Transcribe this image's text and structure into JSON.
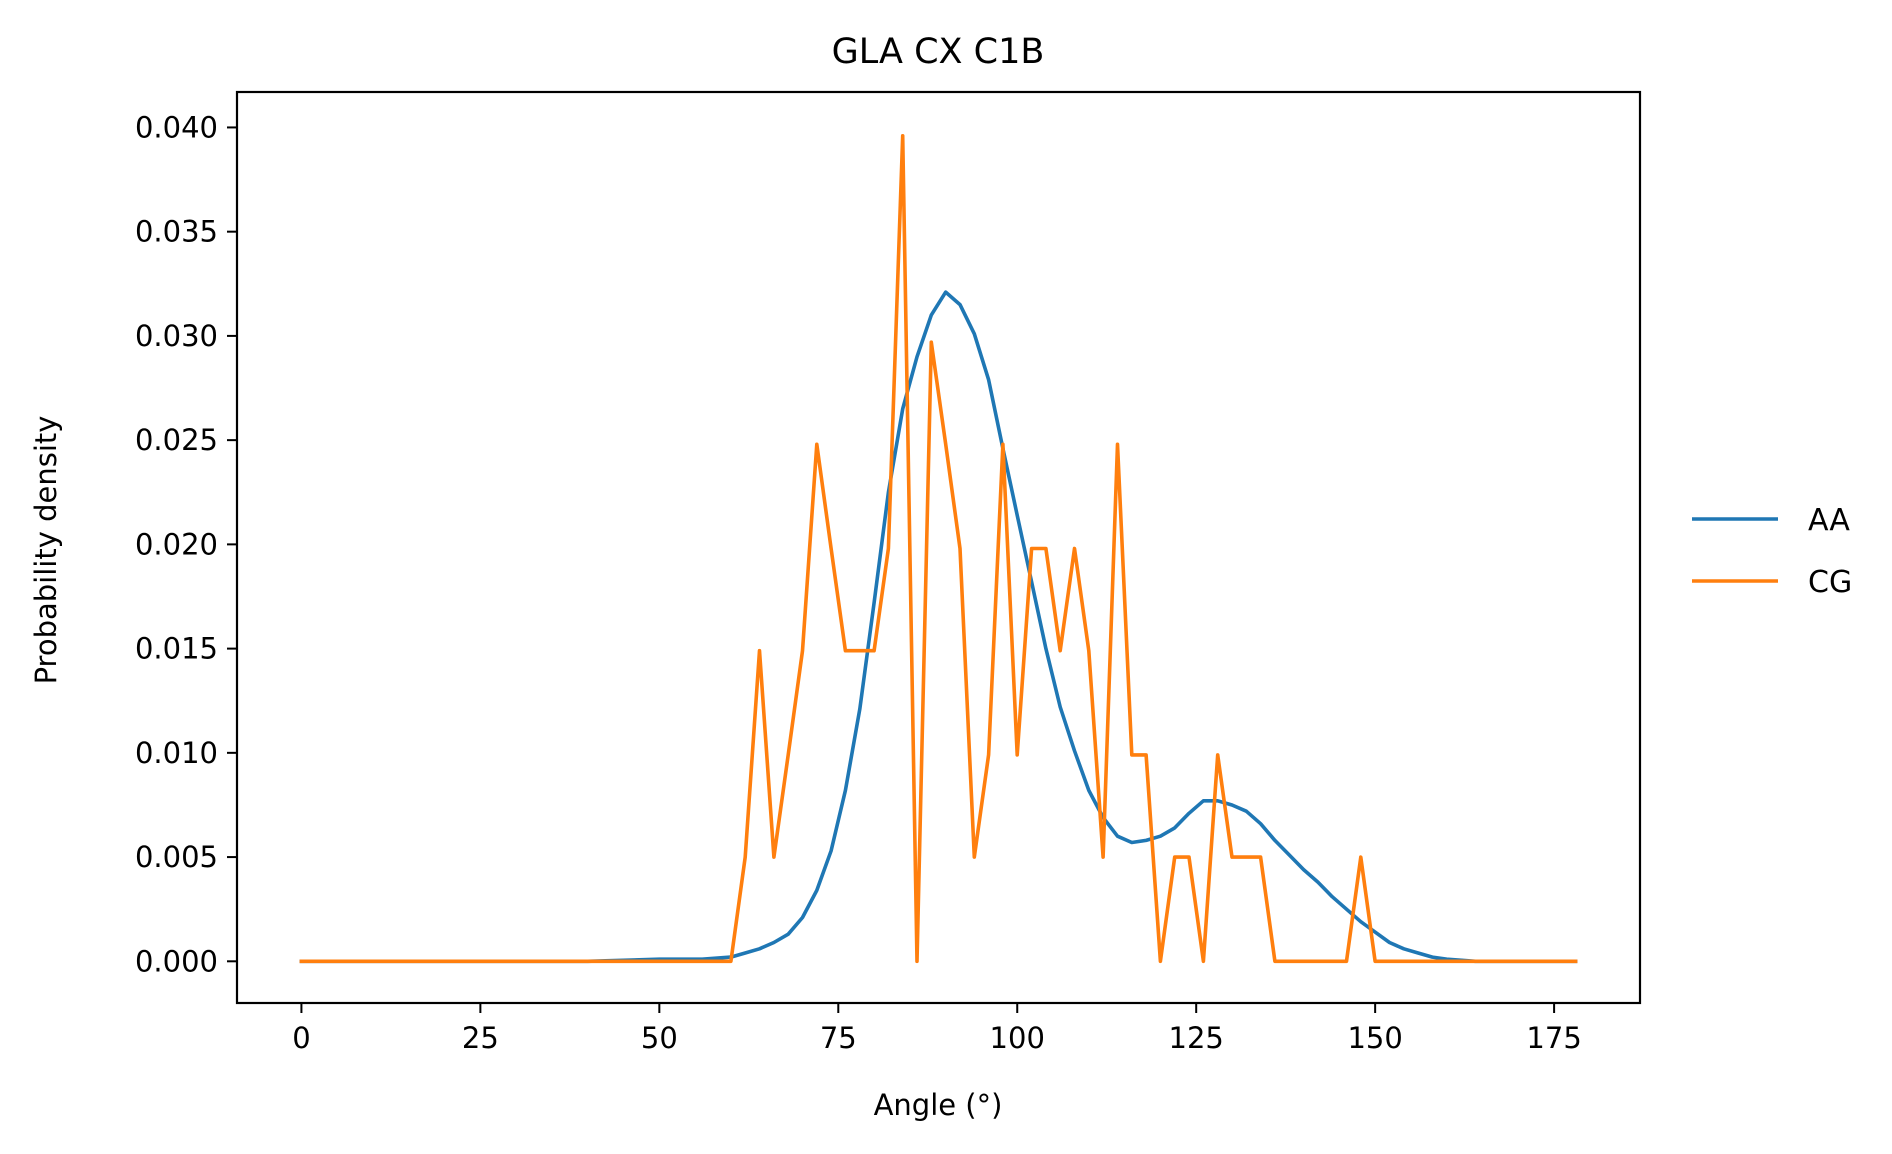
{
  "chart_data": {
    "type": "line",
    "title": "GLA CX C1B",
    "xlabel": "Angle (°)",
    "ylabel": "Probability density",
    "xlim": [
      -9,
      187
    ],
    "ylim": [
      -0.002,
      0.0417
    ],
    "xticks": [
      0,
      25,
      50,
      75,
      100,
      125,
      150,
      175
    ],
    "xtick_labels": [
      "0",
      "25",
      "50",
      "75",
      "100",
      "125",
      "150",
      "175"
    ],
    "yticks": [
      0.0,
      0.005,
      0.01,
      0.015,
      0.02,
      0.025,
      0.03,
      0.035,
      0.04
    ],
    "ytick_labels": [
      "0.000",
      "0.005",
      "0.010",
      "0.015",
      "0.020",
      "0.025",
      "0.030",
      "0.035",
      "0.040"
    ],
    "grid": false,
    "legend_position": "right, outside plot",
    "series": [
      {
        "name": "AA",
        "color": "#1f77b4",
        "x": [
          0,
          10,
          20,
          30,
          40,
          50,
          56,
          60,
          62,
          64,
          66,
          68,
          70,
          72,
          74,
          76,
          78,
          80,
          82,
          84,
          86,
          88,
          90,
          92,
          94,
          96,
          98,
          100,
          102,
          104,
          106,
          108,
          110,
          112,
          114,
          116,
          118,
          120,
          122,
          124,
          126,
          128,
          130,
          132,
          134,
          136,
          138,
          140,
          142,
          144,
          146,
          148,
          150,
          152,
          154,
          156,
          158,
          160,
          164,
          170,
          178
        ],
        "y": [
          0,
          0,
          0,
          0,
          0,
          0.0001,
          0.0001,
          0.0002,
          0.0004,
          0.0006,
          0.0009,
          0.0013,
          0.0021,
          0.0034,
          0.0053,
          0.0082,
          0.0121,
          0.0172,
          0.0225,
          0.0265,
          0.029,
          0.031,
          0.0321,
          0.0315,
          0.0301,
          0.0279,
          0.0246,
          0.0214,
          0.0182,
          0.015,
          0.0122,
          0.0101,
          0.0082,
          0.0069,
          0.006,
          0.0057,
          0.0058,
          0.006,
          0.0064,
          0.0071,
          0.0077,
          0.0077,
          0.0075,
          0.0072,
          0.0066,
          0.0058,
          0.0051,
          0.0044,
          0.0038,
          0.0031,
          0.0025,
          0.0019,
          0.0014,
          0.0009,
          0.0006,
          0.0004,
          0.0002,
          0.0001,
          0,
          0,
          0
        ]
      },
      {
        "name": "CG",
        "color": "#ff7f0e",
        "x": [
          0,
          60,
          62,
          64,
          66,
          68,
          70,
          72,
          74,
          76,
          78,
          80,
          82,
          84,
          86,
          88,
          90,
          92,
          94,
          96,
          98,
          100,
          102,
          104,
          106,
          108,
          110,
          112,
          114,
          116,
          118,
          120,
          122,
          124,
          126,
          128,
          130,
          132,
          134,
          136,
          138,
          140,
          142,
          144,
          146,
          148,
          150,
          178
        ],
        "y": [
          0,
          0,
          0.005,
          0.0149,
          0.005,
          0.0099,
          0.0149,
          0.0248,
          0.0198,
          0.0149,
          0.0149,
          0.0149,
          0.0198,
          0.0396,
          0,
          0.0297,
          0.0248,
          0.0198,
          0.005,
          0.0099,
          0.0248,
          0.0099,
          0.0198,
          0.0198,
          0.0149,
          0.0198,
          0.0149,
          0.005,
          0.0248,
          0.0099,
          0.0099,
          0,
          0.005,
          0.005,
          0,
          0.0099,
          0.005,
          0.005,
          0.005,
          0,
          0,
          0,
          0,
          0,
          0,
          0.005,
          0,
          0
        ]
      }
    ]
  }
}
